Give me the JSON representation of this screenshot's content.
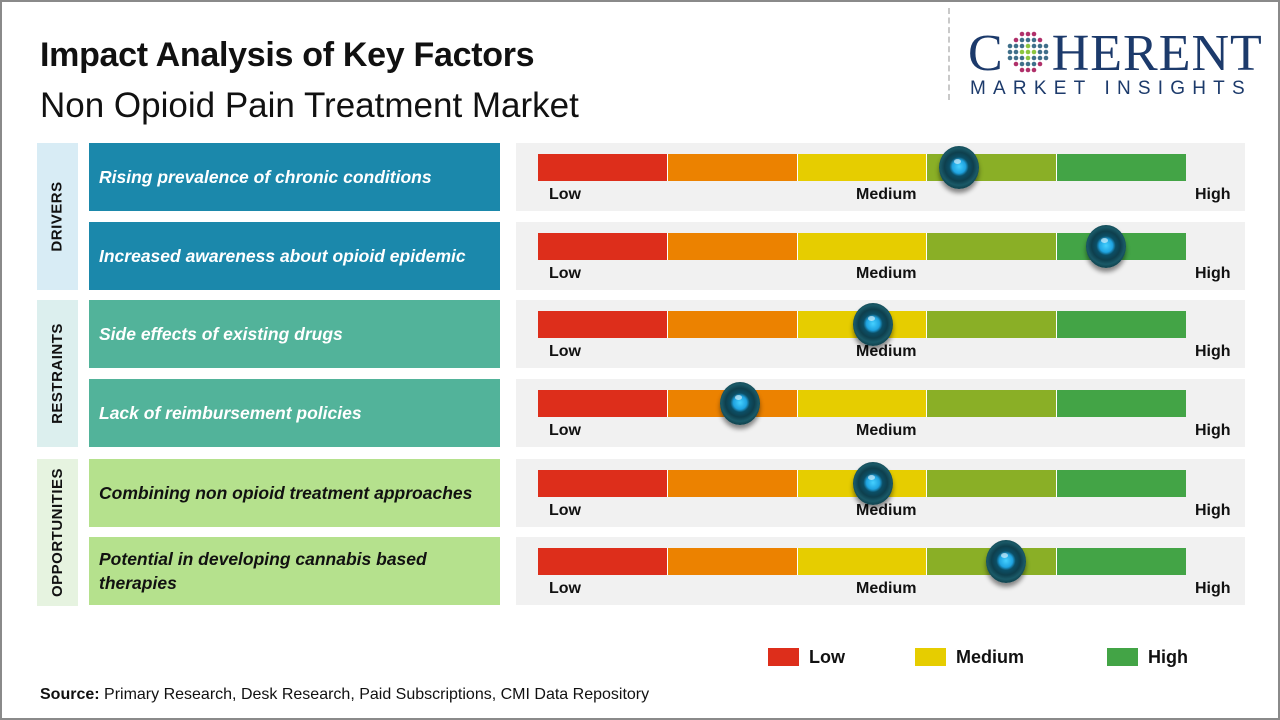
{
  "header": {
    "title": "Impact Analysis of Key Factors",
    "subtitle": "Non Opioid Pain Treatment Market"
  },
  "logo": {
    "first_letter": "C",
    "rest": "HERENT",
    "tagline": "MARKET INSIGHTS",
    "icon": "globe-dots-icon",
    "color": "#1c3a6b"
  },
  "scale_labels": {
    "low": "Low",
    "medium": "Medium",
    "high": "High"
  },
  "segment_colors": [
    "#dd2e1b",
    "#ec8200",
    "#e6cd00",
    "#8aaf26",
    "#43a446"
  ],
  "knob_icon": "gauge-knob-icon",
  "groups": [
    {
      "label": "DRIVERS",
      "label_bg": "#d8ecf5",
      "box_bg": "#1b88ab",
      "text_color": "#ffffff",
      "factors": [
        {
          "text": "Rising prevalence of chronic conditions",
          "impact": 0.65
        },
        {
          "text": "Increased awareness about opioid epidemic",
          "impact": 0.877
        }
      ]
    },
    {
      "label": "RESTRAINTS",
      "label_bg": "#dcefee",
      "box_bg": "#52b39a",
      "text_color": "#ffffff",
      "factors": [
        {
          "text": "Side effects of existing drugs",
          "impact": 0.517
        },
        {
          "text": "Lack of reimbursement policies",
          "impact": 0.312
        }
      ]
    },
    {
      "label": "OPPORTUNITIES",
      "label_bg": "#e6f3e0",
      "box_bg": "#b5e18d",
      "text_color": "#111111",
      "factors": [
        {
          "text": "Combining non opioid treatment approaches",
          "impact": 0.517
        },
        {
          "text": "Potential  in developing cannabis based therapies",
          "impact": 0.722
        }
      ]
    }
  ],
  "legend": [
    {
      "label": "Low",
      "color": "#dd2e1b"
    },
    {
      "label": "Medium",
      "color": "#e6cd00"
    },
    {
      "label": "High",
      "color": "#43a446"
    }
  ],
  "source": {
    "prefix": "Source:",
    "text": " Primary Research, Desk Research, Paid Subscriptions, CMI Data Repository"
  },
  "chart_data": {
    "type": "gauge-bars",
    "title": "Impact Analysis of Key Factors",
    "subtitle": "Non Opioid Pain Treatment Market",
    "scale": [
      "Low",
      "Medium",
      "High"
    ],
    "value_range": [
      0,
      1
    ],
    "categories": [
      "Rising prevalence of chronic conditions",
      "Increased awareness about opioid epidemic",
      "Side effects of existing drugs",
      "Lack of reimbursement policies",
      "Combining non opioid treatment approaches",
      "Potential  in developing cannabis based therapies"
    ],
    "groups": [
      "DRIVERS",
      "DRIVERS",
      "RESTRAINTS",
      "RESTRAINTS",
      "OPPORTUNITIES",
      "OPPORTUNITIES"
    ],
    "values": [
      0.65,
      0.877,
      0.517,
      0.312,
      0.517,
      0.722
    ],
    "legend": [
      "Low",
      "Medium",
      "High"
    ],
    "legend_position": "bottom-right"
  }
}
